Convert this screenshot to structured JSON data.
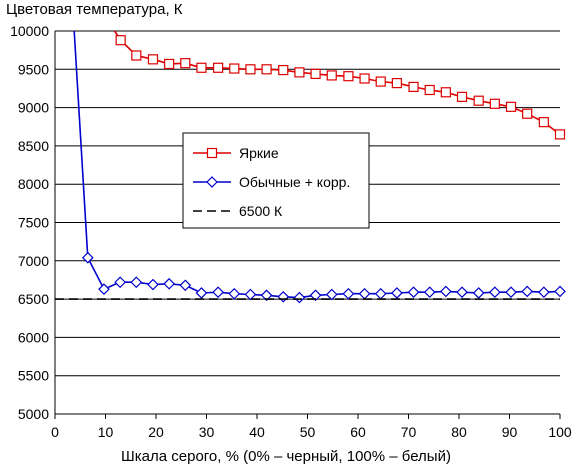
{
  "chart_data": {
    "type": "line",
    "title": "Цветовая температура, К",
    "xlabel": "Шкала серого, % (0% – черный, 100% – белый)",
    "ylabel": "",
    "xlim": [
      0,
      100
    ],
    "ylim": [
      5000,
      10000
    ],
    "xticks": [
      "0",
      "10",
      "20",
      "30",
      "40",
      "50",
      "60",
      "70",
      "80",
      "90",
      "100"
    ],
    "yticks": [
      "5000",
      "5500",
      "6000",
      "6500",
      "7000",
      "7500",
      "8000",
      "8500",
      "9000",
      "9500",
      "10000"
    ],
    "grid": "horizontal",
    "legend_position": "center-right",
    "series": [
      {
        "name": "Яркие",
        "color": "#dd0000",
        "marker": "square",
        "x": [
          13,
          16.1,
          19.4,
          22.6,
          25.8,
          29,
          32.3,
          35.5,
          38.7,
          41.9,
          45.2,
          48.4,
          51.6,
          54.8,
          58.1,
          61.3,
          64.5,
          67.7,
          71,
          74.2,
          77.4,
          80.6,
          83.9,
          87.1,
          90.3,
          93.5,
          96.8,
          100
        ],
        "y": [
          9880,
          9680,
          9630,
          9570,
          9580,
          9520,
          9520,
          9510,
          9500,
          9500,
          9490,
          9460,
          9440,
          9420,
          9410,
          9380,
          9340,
          9320,
          9270,
          9230,
          9200,
          9140,
          9090,
          9050,
          9010,
          8920,
          8810,
          8650
        ],
        "lead_in": {
          "x": [
            11.8,
            13
          ],
          "y": [
            10000,
            9880
          ]
        }
      },
      {
        "name": "Обычные + корр.",
        "color": "#0000cc",
        "marker": "diamond",
        "x": [
          6.5,
          9.7,
          12.9,
          16.1,
          19.4,
          22.6,
          25.8,
          29,
          32.3,
          35.5,
          38.7,
          41.9,
          45.2,
          48.4,
          51.6,
          54.8,
          58.1,
          61.3,
          64.5,
          67.7,
          71,
          74.2,
          77.4,
          80.6,
          83.9,
          87.1,
          90.3,
          93.5,
          96.8,
          100
        ],
        "y": [
          7040,
          6630,
          6720,
          6720,
          6690,
          6700,
          6680,
          6580,
          6590,
          6570,
          6560,
          6550,
          6530,
          6520,
          6550,
          6560,
          6570,
          6570,
          6570,
          6580,
          6590,
          6590,
          6600,
          6590,
          6580,
          6590,
          6590,
          6600,
          6590,
          6600
        ],
        "lead_in": {
          "x": [
            3.8,
            6.5
          ],
          "y": [
            10000,
            7040
          ]
        }
      },
      {
        "name": "6500 К",
        "color": "#000000",
        "marker": "none",
        "dashed": true,
        "x": [
          0,
          100
        ],
        "y": [
          6500,
          6500
        ]
      }
    ]
  }
}
